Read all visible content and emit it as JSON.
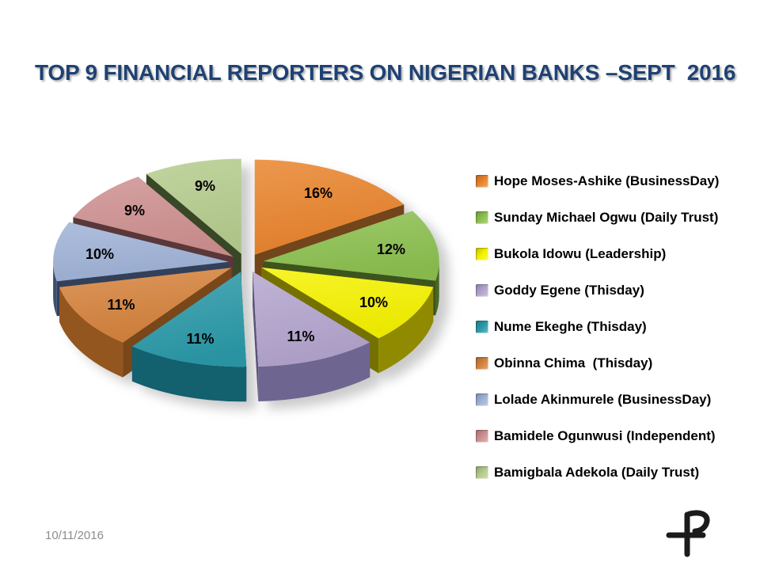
{
  "slide": {
    "title": "TOP 9 FINANCIAL REPORTERS ON NIGERIAN BANKS –SEPT  2016",
    "footer_date": "10/11/2016",
    "logo_icon": "plus-p-monogram",
    "title_color": "#1F4173",
    "date_color": "#8C8C8C",
    "background_color": "#FFFFFF"
  },
  "chart_data": {
    "type": "pie",
    "style": "3d-exploded",
    "title": "TOP 9 FINANCIAL REPORTERS ON NIGERIAN BANKS –SEPT  2016",
    "legend_position": "right",
    "unit": "%",
    "categories": [
      "Hope Moses-Ashike (BusinessDay)",
      "Sunday Michael Ogwu (Daily Trust)",
      "Bukola Idowu (Leadership)",
      "Goddy Egene (Thisday)",
      "Nume Ekeghe (Thisday)",
      "Obinna Chima  (Thisday)",
      "Lolade Akinmurele (BusinessDay)",
      "Bamidele Ogunwusi (Independent)",
      "Bamigbala Adekola (Daily Trust)"
    ],
    "values": [
      16,
      12,
      10,
      11,
      11,
      11,
      10,
      9,
      9
    ],
    "data_labels": [
      "16%",
      "12%",
      "10%",
      "11%",
      "11%",
      "11%",
      "10%",
      "9%",
      "9%"
    ],
    "colors": [
      "#E8832C",
      "#8CC04F",
      "#F5F200",
      "#B3A4CD",
      "#2B99A8",
      "#D5823C",
      "#9FB2D7",
      "#CE9090",
      "#B5CC8E"
    ],
    "side_colors": [
      "#8C5420",
      "#4A6623",
      "#8F8A00",
      "#6E6590",
      "#13606F",
      "#94561F",
      "#3D4E6E",
      "#6E4344",
      "#44572D"
    ]
  }
}
